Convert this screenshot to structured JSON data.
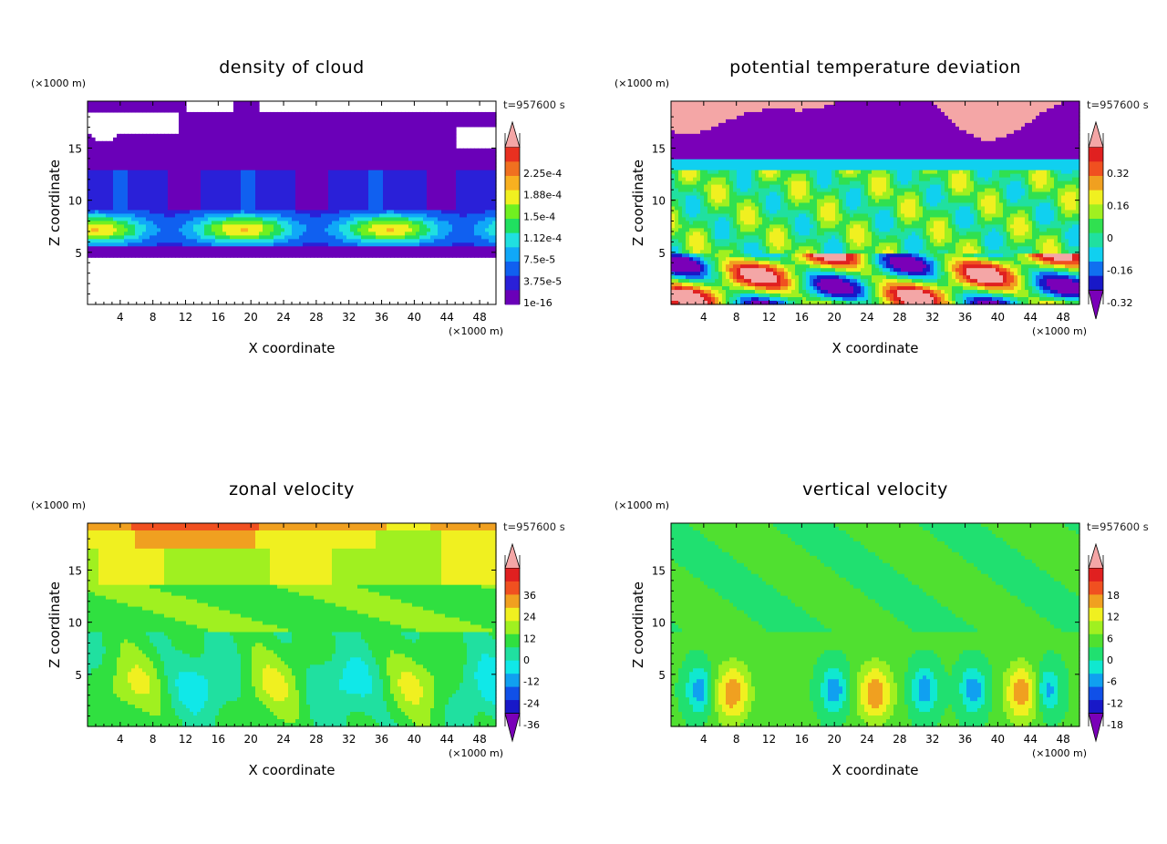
{
  "figure": {
    "layout": "2x2 contour panels"
  },
  "chart_data": [
    {
      "type": "heatmap",
      "title": "density of cloud",
      "xlabel": "X coordinate",
      "ylabel": "Z coordinate",
      "x_unit": "(×1000 m)",
      "y_unit": "(×1000 m)",
      "time_label": "t=957600 s",
      "xlim": [
        0,
        50
      ],
      "ylim": [
        0,
        19.5
      ],
      "x_ticks": [
        4,
        8,
        12,
        16,
        20,
        24,
        28,
        32,
        36,
        40,
        44,
        48
      ],
      "y_ticks": [
        5,
        10,
        15
      ],
      "colorbar": {
        "labels": [
          "2.25e-4",
          "1.88e-4",
          "1.5e-4",
          "1.12e-4",
          "7.5e-5",
          "3.75e-5",
          "1e-16"
        ],
        "colors": [
          "#6a00b8",
          "#2a20d8",
          "#1060f0",
          "#10a8f8",
          "#20e0e0",
          "#20e060",
          "#70f020",
          "#f0f020",
          "#f8b020",
          "#f07020",
          "#e83020",
          "#f4a6a6"
        ],
        "extend_low": false,
        "extend_high": true
      },
      "field": "cloud"
    },
    {
      "type": "heatmap",
      "title": "potential temperature deviation",
      "xlabel": "X coordinate",
      "ylabel": "Z coordinate",
      "x_unit": "(×1000 m)",
      "y_unit": "(×1000 m)",
      "time_label": "t=957600 s",
      "xlim": [
        0,
        50
      ],
      "ylim": [
        0,
        19.5
      ],
      "x_ticks": [
        4,
        8,
        12,
        16,
        20,
        24,
        28,
        32,
        36,
        40,
        44,
        48
      ],
      "y_ticks": [
        5,
        10,
        15
      ],
      "colorbar": {
        "labels": [
          "0.32",
          "0.16",
          "0",
          "-0.16",
          "-0.32"
        ],
        "colors": [
          "#7a00b8",
          "#1818c8",
          "#1070f0",
          "#10d0f0",
          "#20e0a0",
          "#30e050",
          "#a0f020",
          "#f0f020",
          "#f0a020",
          "#f05020",
          "#e02020",
          "#f4a6a6"
        ],
        "extend_low": true,
        "extend_high": true
      },
      "field": "theta"
    },
    {
      "type": "heatmap",
      "title": "zonal velocity",
      "xlabel": "X coordinate",
      "ylabel": "Z coordinate",
      "x_unit": "(×1000 m)",
      "y_unit": "(×1000 m)",
      "time_label": "t=957600 s",
      "xlim": [
        0,
        50
      ],
      "ylim": [
        0,
        19.5
      ],
      "x_ticks": [
        4,
        8,
        12,
        16,
        20,
        24,
        28,
        32,
        36,
        40,
        44,
        48
      ],
      "y_ticks": [
        5,
        10,
        15
      ],
      "colorbar": {
        "labels": [
          "36",
          "24",
          "12",
          "0",
          "-12",
          "-24",
          "-36"
        ],
        "colors": [
          "#7a00b8",
          "#1818c8",
          "#1050e8",
          "#10a0f0",
          "#10e8e8",
          "#20e0a0",
          "#30e040",
          "#a0f020",
          "#f0f020",
          "#f0a020",
          "#f05020",
          "#e02020",
          "#f4a6a6"
        ],
        "extend_low": true,
        "extend_high": true
      },
      "field": "zonal"
    },
    {
      "type": "heatmap",
      "title": "vertical velocity",
      "xlabel": "X coordinate",
      "ylabel": "Z coordinate",
      "x_unit": "(×1000 m)",
      "y_unit": "(×1000 m)",
      "time_label": "t=957600 s",
      "xlim": [
        0,
        50
      ],
      "ylim": [
        0,
        19.5
      ],
      "x_ticks": [
        4,
        8,
        12,
        16,
        20,
        24,
        28,
        32,
        36,
        40,
        44,
        48
      ],
      "y_ticks": [
        5,
        10,
        15
      ],
      "colorbar": {
        "labels": [
          "18",
          "12",
          "6",
          "0",
          "-6",
          "-12",
          "-18"
        ],
        "colors": [
          "#7a00b8",
          "#1818c8",
          "#1050e8",
          "#10a0f0",
          "#10e8d0",
          "#20e070",
          "#50e030",
          "#a0f020",
          "#f0f020",
          "#f0a020",
          "#f05020",
          "#e02020",
          "#f4a6a6"
        ],
        "extend_low": true,
        "extend_high": true
      },
      "field": "vertical"
    }
  ]
}
